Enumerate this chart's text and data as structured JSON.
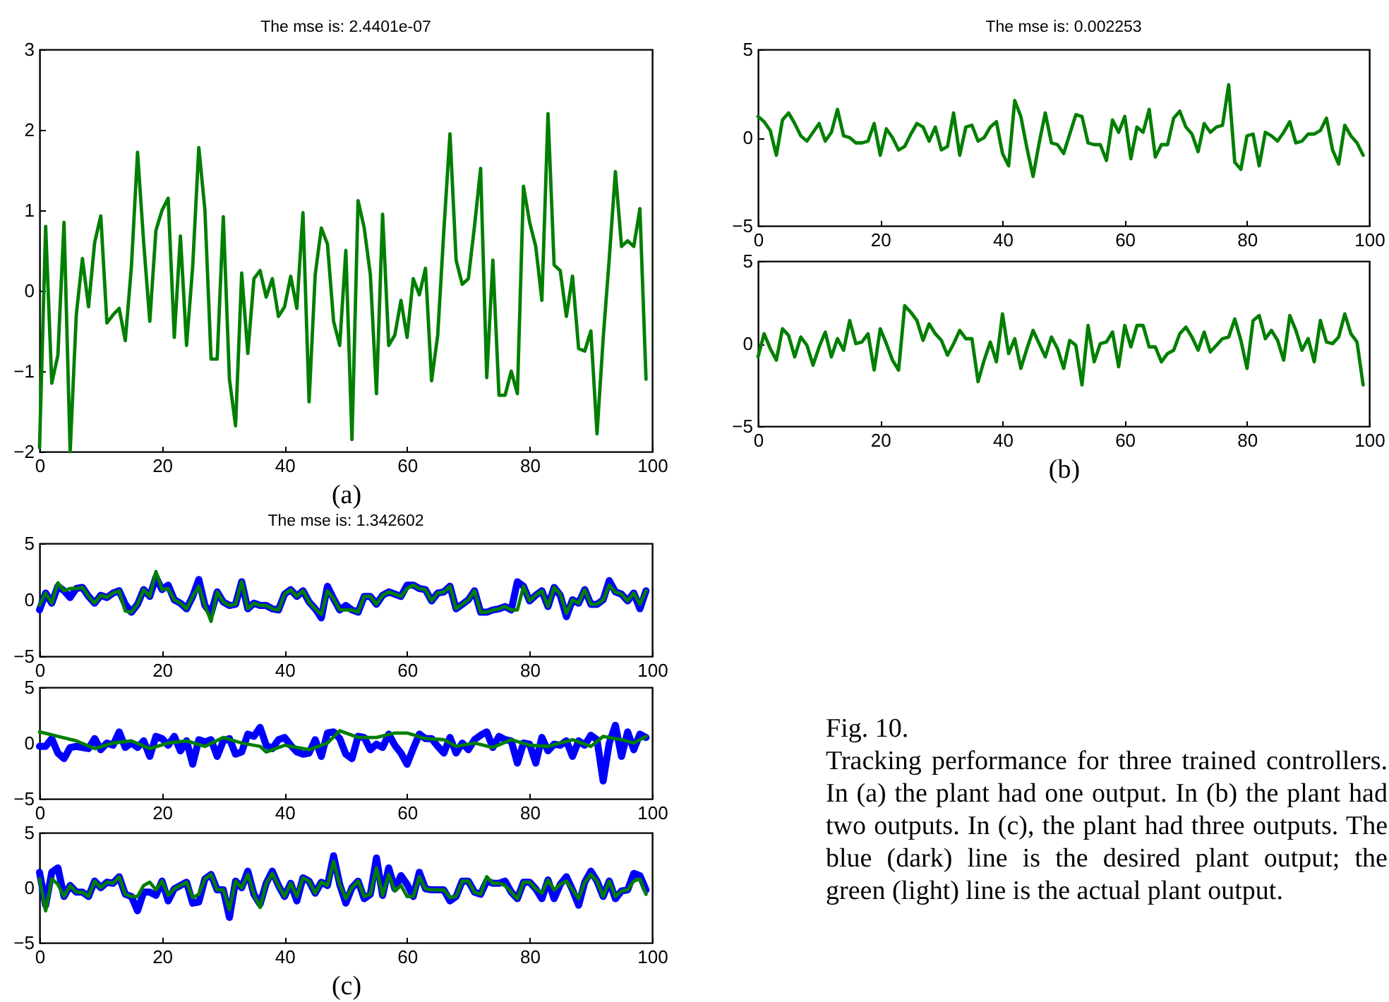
{
  "chart_data": [
    {
      "type": "line",
      "title": "The mse is: 2.4401e-07",
      "xlabel": "(a)",
      "xlim": [
        0,
        100
      ],
      "ylim": [
        -2,
        3
      ],
      "xticks": [
        0,
        20,
        40,
        60,
        80,
        100
      ],
      "yticks": [
        -2,
        -1,
        0,
        1,
        2,
        3
      ],
      "x": [
        0,
        1,
        2,
        3,
        4,
        5,
        6,
        7,
        8,
        9,
        10,
        11,
        12,
        13,
        14,
        15,
        16,
        17,
        18,
        19,
        20,
        21,
        22,
        23,
        24,
        25,
        26,
        27,
        28,
        29,
        30,
        31,
        32,
        33,
        34,
        35,
        36,
        37,
        38,
        39,
        40,
        41,
        42,
        43,
        44,
        45,
        46,
        47,
        48,
        49,
        50,
        51,
        52,
        53,
        54,
        55,
        56,
        57,
        58,
        59,
        60,
        61,
        62,
        63,
        64,
        65,
        66,
        67,
        68,
        69,
        70,
        71,
        72,
        73,
        74,
        75,
        76,
        77,
        78,
        79,
        80,
        81,
        82,
        83,
        84,
        85,
        86,
        87,
        88,
        89,
        90,
        91,
        92,
        93,
        94,
        95,
        96,
        97,
        98,
        99
      ],
      "series": [
        {
          "color": "#007f00",
          "values": [
            -1.95,
            0.8,
            -1.15,
            -0.8,
            0.85,
            -2.0,
            -0.3,
            0.4,
            -0.2,
            0.6,
            0.93,
            -0.4,
            -0.3,
            -0.22,
            -0.62,
            0.3,
            1.72,
            0.6,
            -0.38,
            0.75,
            1.0,
            1.15,
            -0.58,
            0.68,
            -0.68,
            0.3,
            1.78,
            1.0,
            -0.85,
            -0.85,
            0.92,
            -1.1,
            -1.68,
            0.22,
            -0.78,
            0.15,
            0.25,
            -0.08,
            0.15,
            -0.32,
            -0.2,
            0.18,
            -0.22,
            0.97,
            -1.38,
            0.2,
            0.78,
            0.58,
            -0.38,
            -0.68,
            0.5,
            -1.85,
            1.12,
            0.78,
            0.2,
            -1.28,
            0.95,
            -0.68,
            -0.55,
            -0.12,
            -0.58,
            0.15,
            -0.05,
            0.28,
            -1.12,
            -0.55,
            0.75,
            1.95,
            0.38,
            0.08,
            0.15,
            0.8,
            1.52,
            -1.08,
            0.38,
            -1.3,
            -1.3,
            -1.0,
            -1.28,
            1.3,
            0.85,
            0.55,
            -0.12,
            2.2,
            0.32,
            0.25,
            -0.32,
            0.18,
            -0.72,
            -0.75,
            -0.5,
            -1.78,
            -0.6,
            0.4,
            1.48,
            0.55,
            0.62,
            0.55,
            1.02,
            -1.1
          ]
        }
      ]
    },
    {
      "type": "line",
      "title": "The mse is: 0.002253",
      "xlim": [
        0,
        100
      ],
      "ylim": [
        -5,
        5
      ],
      "xticks": [
        0,
        20,
        40,
        60,
        80,
        100
      ],
      "yticks": [
        -5,
        0,
        5
      ],
      "x": [
        0,
        1,
        2,
        3,
        4,
        5,
        6,
        7,
        8,
        9,
        10,
        11,
        12,
        13,
        14,
        15,
        16,
        17,
        18,
        19,
        20,
        21,
        22,
        23,
        24,
        25,
        26,
        27,
        28,
        29,
        30,
        31,
        32,
        33,
        34,
        35,
        36,
        37,
        38,
        39,
        40,
        41,
        42,
        43,
        44,
        45,
        46,
        47,
        48,
        49,
        50,
        51,
        52,
        53,
        54,
        55,
        56,
        57,
        58,
        59,
        60,
        61,
        62,
        63,
        64,
        65,
        66,
        67,
        68,
        69,
        70,
        71,
        72,
        73,
        74,
        75,
        76,
        77,
        78,
        79,
        80,
        81,
        82,
        83,
        84,
        85,
        86,
        87,
        88,
        89,
        90,
        91,
        92,
        93,
        94,
        95,
        96,
        97,
        98,
        99
      ],
      "series": [
        {
          "color": "#007f00",
          "values": [
            1.2,
            0.9,
            0.4,
            -1.0,
            1.0,
            1.4,
            0.8,
            0.1,
            -0.2,
            0.3,
            0.8,
            -0.2,
            0.3,
            1.6,
            0.1,
            0.0,
            -0.3,
            -0.3,
            -0.2,
            0.8,
            -1.0,
            0.5,
            0.0,
            -0.7,
            -0.5,
            0.2,
            0.8,
            0.6,
            -0.2,
            0.6,
            -0.7,
            -0.5,
            1.4,
            -1.0,
            0.6,
            0.7,
            -0.2,
            0.0,
            0.6,
            0.9,
            -0.9,
            -1.6,
            2.1,
            1.2,
            -0.6,
            -2.2,
            -0.3,
            1.4,
            -0.3,
            -0.4,
            -0.9,
            0.2,
            1.3,
            1.2,
            -0.3,
            -0.4,
            -0.4,
            -1.3,
            1.0,
            0.3,
            1.2,
            -1.2,
            0.6,
            0.3,
            1.6,
            -1.1,
            -0.4,
            -0.4,
            1.1,
            1.5,
            0.6,
            0.2,
            -0.8,
            0.8,
            0.3,
            0.6,
            0.7,
            3.0,
            -1.4,
            -1.8,
            0.1,
            0.2,
            -1.6,
            0.3,
            0.1,
            -0.2,
            0.3,
            0.9,
            -0.3,
            -0.2,
            0.2,
            0.2,
            0.4,
            1.1,
            -0.7,
            -1.5,
            0.7,
            0.1,
            -0.3,
            -1.0
          ]
        }
      ]
    },
    {
      "type": "line",
      "xlabel": "(b)",
      "xlim": [
        0,
        100
      ],
      "ylim": [
        -5,
        5
      ],
      "xticks": [
        0,
        20,
        40,
        60,
        80,
        100
      ],
      "yticks": [
        -5,
        0,
        5
      ],
      "x": [
        0,
        1,
        2,
        3,
        4,
        5,
        6,
        7,
        8,
        9,
        10,
        11,
        12,
        13,
        14,
        15,
        16,
        17,
        18,
        19,
        20,
        21,
        22,
        23,
        24,
        25,
        26,
        27,
        28,
        29,
        30,
        31,
        32,
        33,
        34,
        35,
        36,
        37,
        38,
        39,
        40,
        41,
        42,
        43,
        44,
        45,
        46,
        47,
        48,
        49,
        50,
        51,
        52,
        53,
        54,
        55,
        56,
        57,
        58,
        59,
        60,
        61,
        62,
        63,
        64,
        65,
        66,
        67,
        68,
        69,
        70,
        71,
        72,
        73,
        74,
        75,
        76,
        77,
        78,
        79,
        80,
        81,
        82,
        83,
        84,
        85,
        86,
        87,
        88,
        89,
        90,
        91,
        92,
        93,
        94,
        95,
        96,
        97,
        98,
        99
      ],
      "series": [
        {
          "color": "#007f00",
          "values": [
            -0.8,
            0.6,
            -0.3,
            -1.0,
            0.9,
            0.5,
            -0.8,
            0.4,
            -0.1,
            -1.3,
            -0.2,
            0.7,
            -0.8,
            0.3,
            -0.4,
            1.4,
            0.0,
            0.1,
            0.6,
            -1.6,
            0.9,
            0.0,
            -1.0,
            -1.6,
            2.3,
            1.9,
            1.4,
            0.2,
            1.2,
            0.6,
            0.2,
            -0.7,
            0.0,
            0.8,
            0.3,
            0.3,
            -2.3,
            -1.0,
            0.1,
            -1.1,
            1.8,
            -0.6,
            0.3,
            -1.5,
            -0.3,
            0.8,
            0.0,
            -0.8,
            0.4,
            -0.3,
            -1.5,
            0.2,
            -0.1,
            -2.5,
            1.1,
            -1.1,
            0.0,
            0.1,
            0.7,
            -1.4,
            1.1,
            -0.2,
            1.1,
            1.1,
            -0.2,
            -0.2,
            -1.1,
            -0.6,
            -0.4,
            0.6,
            1.0,
            0.4,
            -0.4,
            0.7,
            -0.5,
            -0.1,
            0.3,
            0.4,
            1.5,
            0.2,
            -1.5,
            1.4,
            1.7,
            0.3,
            0.8,
            0.2,
            -1.0,
            1.7,
            0.8,
            -0.4,
            0.3,
            -1.1,
            1.4,
            0.1,
            0.0,
            0.4,
            1.8,
            0.6,
            0.1,
            -2.5
          ]
        }
      ]
    },
    {
      "type": "line",
      "title": "The mse is: 1.342602",
      "xlim": [
        0,
        100
      ],
      "ylim": [
        -5,
        5
      ],
      "xticks": [
        0,
        20,
        40,
        60,
        80,
        100
      ],
      "yticks": [
        -5,
        0,
        5
      ],
      "x": [
        0,
        1,
        2,
        3,
        4,
        5,
        6,
        7,
        8,
        9,
        10,
        11,
        12,
        13,
        14,
        15,
        16,
        17,
        18,
        19,
        20,
        21,
        22,
        23,
        24,
        25,
        26,
        27,
        28,
        29,
        30,
        31,
        32,
        33,
        34,
        35,
        36,
        37,
        38,
        39,
        40,
        41,
        42,
        43,
        44,
        45,
        46,
        47,
        48,
        49,
        50,
        51,
        52,
        53,
        54,
        55,
        56,
        57,
        58,
        59,
        60,
        61,
        62,
        63,
        64,
        65,
        66,
        67,
        68,
        69,
        70,
        71,
        72,
        73,
        74,
        75,
        76,
        77,
        78,
        79,
        80,
        81,
        82,
        83,
        84,
        85,
        86,
        87,
        88,
        89,
        90,
        91,
        92,
        93,
        94,
        95,
        96,
        97,
        98,
        99
      ],
      "series": [
        {
          "color": "#0000ff",
          "values": [
            -0.9,
            0.6,
            -0.3,
            1.2,
            0.8,
            0.2,
            1.0,
            1.1,
            0.3,
            -0.3,
            0.4,
            0.2,
            0.6,
            0.8,
            -0.4,
            -1.1,
            -0.4,
            0.9,
            0.3,
            2.0,
            0.9,
            1.3,
            0.0,
            -0.3,
            -0.8,
            0.3,
            1.8,
            -0.5,
            -1.2,
            0.7,
            -0.2,
            -0.5,
            -0.4,
            1.6,
            -0.8,
            -0.3,
            -0.5,
            -0.5,
            -0.8,
            -0.9,
            0.5,
            0.9,
            0.3,
            0.8,
            -0.2,
            -0.8,
            -1.6,
            1.2,
            0.1,
            -0.9,
            -0.5,
            -0.9,
            -1.1,
            0.3,
            0.3,
            -0.4,
            0.4,
            0.7,
            0.5,
            0.3,
            1.3,
            1.3,
            1.0,
            0.9,
            -0.1,
            0.6,
            0.7,
            1.2,
            -0.8,
            -0.4,
            0.0,
            0.8,
            -1.1,
            -1.1,
            -0.9,
            -0.8,
            -0.6,
            -0.9,
            1.6,
            1.2,
            -0.1,
            0.4,
            0.8,
            -0.6,
            1.1,
            0.4,
            -1.5,
            0.0,
            -0.3,
            0.9,
            -0.4,
            -0.4,
            0.0,
            1.7,
            0.7,
            0.5,
            -0.1,
            0.6,
            -0.8,
            0.8
          ]
        },
        {
          "color": "#007f00",
          "values": [
            -0.5,
            0.6,
            -0.3,
            1.5,
            0.8,
            1.0,
            1.0,
            1.1,
            0.3,
            -0.3,
            0.4,
            0.2,
            0.6,
            0.8,
            -1.0,
            -1.1,
            -0.4,
            0.9,
            0.3,
            2.5,
            0.9,
            1.0,
            0.0,
            -0.3,
            -0.8,
            0.3,
            1.2,
            -0.5,
            -1.9,
            0.7,
            -0.2,
            -0.5,
            -0.4,
            1.6,
            -0.8,
            -0.3,
            -0.5,
            -0.5,
            -0.8,
            -0.9,
            0.5,
            0.9,
            0.3,
            0.8,
            -0.2,
            -0.8,
            -1.3,
            0.8,
            0.1,
            -0.9,
            -0.9,
            -0.9,
            -1.1,
            0.3,
            0.3,
            -0.4,
            0.4,
            0.7,
            0.5,
            0.3,
            1.0,
            1.3,
            1.0,
            0.9,
            -0.1,
            0.6,
            0.7,
            1.2,
            -0.8,
            -0.4,
            0.0,
            0.8,
            -1.1,
            -1.1,
            -0.9,
            -0.8,
            -0.6,
            -0.9,
            -0.9,
            1.2,
            -0.1,
            0.4,
            0.8,
            -0.6,
            1.1,
            0.5,
            -1.2,
            0.0,
            -0.3,
            0.9,
            -0.4,
            -0.4,
            0.0,
            1.3,
            0.7,
            0.5,
            -0.1,
            0.6,
            -0.4,
            0.8
          ]
        }
      ]
    },
    {
      "type": "line",
      "xlim": [
        0,
        100
      ],
      "ylim": [
        -5,
        5
      ],
      "xticks": [
        0,
        20,
        40,
        60,
        80,
        100
      ],
      "yticks": [
        -5,
        0,
        5
      ],
      "x": [
        0,
        1,
        2,
        3,
        4,
        5,
        6,
        7,
        8,
        9,
        10,
        11,
        12,
        13,
        14,
        15,
        16,
        17,
        18,
        19,
        20,
        21,
        22,
        23,
        24,
        25,
        26,
        27,
        28,
        29,
        30,
        31,
        32,
        33,
        34,
        35,
        36,
        37,
        38,
        39,
        40,
        41,
        42,
        43,
        44,
        45,
        46,
        47,
        48,
        49,
        50,
        51,
        52,
        53,
        54,
        55,
        56,
        57,
        58,
        59,
        60,
        61,
        62,
        63,
        64,
        65,
        66,
        67,
        68,
        69,
        70,
        71,
        72,
        73,
        74,
        75,
        76,
        77,
        78,
        79,
        80,
        81,
        82,
        83,
        84,
        85,
        86,
        87,
        88,
        89,
        90,
        91,
        92,
        93,
        94,
        95,
        96,
        97,
        98,
        99
      ],
      "series": [
        {
          "color": "#0000ff",
          "values": [
            -0.3,
            -0.3,
            0.4,
            -0.9,
            -1.4,
            -0.4,
            -0.3,
            -0.4,
            -0.5,
            0.4,
            -0.6,
            0.0,
            -0.2,
            1.0,
            -0.4,
            0.0,
            -0.4,
            0.2,
            -1.2,
            0.6,
            0.4,
            -0.2,
            0.6,
            -0.7,
            0.2,
            -1.9,
            0.3,
            0.1,
            0.3,
            -1.2,
            0.2,
            0.4,
            -1.0,
            -0.8,
            0.8,
            0.6,
            1.4,
            -0.2,
            -0.5,
            0.3,
            0.5,
            -0.2,
            -0.8,
            -1.0,
            -0.9,
            0.3,
            -1.2,
            0.9,
            1.0,
            0.4,
            -1.0,
            -1.4,
            0.6,
            0.5,
            -0.6,
            -0.1,
            -0.4,
            0.8,
            -0.2,
            -0.9,
            -1.9,
            -0.5,
            0.8,
            0.4,
            0.4,
            -0.3,
            -0.9,
            0.5,
            -0.9,
            0.0,
            -0.6,
            0.3,
            0.7,
            1.0,
            -0.4,
            0.6,
            0.3,
            0.2,
            -1.8,
            0.0,
            -0.1,
            -1.8,
            0.5,
            -0.7,
            -0.1,
            -0.2,
            0.2,
            -1.2,
            0.2,
            -0.2,
            0.7,
            0.3,
            -3.4,
            0.0,
            1.6,
            -1.2,
            1.0,
            -0.6,
            0.8,
            0.5
          ]
        },
        {
          "color": "#007f00",
          "x": [
            0,
            3,
            6,
            9,
            12,
            15,
            18,
            21,
            24,
            27,
            30,
            33,
            36,
            37,
            40,
            44,
            47,
            49,
            52,
            55,
            58,
            60,
            63,
            66,
            68,
            71,
            74,
            77,
            80,
            83,
            87,
            90,
            92,
            95,
            97,
            99
          ],
          "values": [
            1.0,
            0.6,
            0.2,
            -0.5,
            0.0,
            0.2,
            -0.5,
            0.0,
            0.2,
            -0.3,
            0.5,
            0.0,
            -0.3,
            -0.8,
            -0.2,
            -0.6,
            0.0,
            1.1,
            0.5,
            0.5,
            0.9,
            0.9,
            0.4,
            0.3,
            -0.3,
            0.0,
            -0.4,
            0.3,
            -0.2,
            -0.3,
            0.3,
            -0.3,
            0.6,
            0.3,
            0.0,
            0.6
          ]
        }
      ]
    },
    {
      "type": "line",
      "xlabel": "(c)",
      "xlim": [
        0,
        100
      ],
      "ylim": [
        -5,
        5
      ],
      "xticks": [
        0,
        20,
        40,
        60,
        80,
        100
      ],
      "yticks": [
        -5,
        0,
        5
      ],
      "x": [
        0,
        1,
        2,
        3,
        4,
        5,
        6,
        7,
        8,
        9,
        10,
        11,
        12,
        13,
        14,
        15,
        16,
        17,
        18,
        19,
        20,
        21,
        22,
        23,
        24,
        25,
        26,
        27,
        28,
        29,
        30,
        31,
        32,
        33,
        34,
        35,
        36,
        37,
        38,
        39,
        40,
        41,
        42,
        43,
        44,
        45,
        46,
        47,
        48,
        49,
        50,
        51,
        52,
        53,
        54,
        55,
        56,
        57,
        58,
        59,
        60,
        61,
        62,
        63,
        64,
        65,
        66,
        67,
        68,
        69,
        70,
        71,
        72,
        73,
        74,
        75,
        76,
        77,
        78,
        79,
        80,
        81,
        82,
        83,
        84,
        85,
        86,
        87,
        88,
        89,
        90,
        91,
        92,
        93,
        94,
        95,
        96,
        97,
        98,
        99
      ],
      "series": [
        {
          "color": "#0000ff",
          "values": [
            1.4,
            -1.6,
            1.4,
            1.8,
            -0.8,
            0.2,
            -0.4,
            -0.4,
            -0.8,
            0.6,
            0.0,
            0.5,
            0.4,
            1.0,
            -0.6,
            -0.8,
            -2.1,
            -0.4,
            -0.4,
            -0.7,
            0.6,
            -1.2,
            -0.1,
            0.2,
            0.5,
            -1.4,
            -1.3,
            0.8,
            1.2,
            -0.2,
            -0.2,
            -2.7,
            0.6,
            0.0,
            1.5,
            -0.6,
            -1.5,
            0.4,
            1.5,
            0.2,
            -0.8,
            0.4,
            -1.2,
            0.9,
            0.6,
            -0.5,
            0.5,
            0.2,
            2.9,
            0.3,
            -1.4,
            0.0,
            0.6,
            -1.0,
            -0.6,
            2.7,
            -0.7,
            1.8,
            -0.1,
            1.1,
            0.3,
            -0.8,
            1.4,
            -0.1,
            -0.2,
            -0.2,
            -0.2,
            -1.2,
            -0.8,
            0.6,
            0.6,
            -0.4,
            -0.6,
            0.6,
            0.4,
            0.4,
            0.6,
            -0.4,
            -1.0,
            0.5,
            0.5,
            -0.1,
            -1.0,
            0.7,
            -1.0,
            0.3,
            1.0,
            -0.2,
            -1.6,
            0.5,
            1.5,
            0.6,
            -0.8,
            0.6,
            -1.0,
            -0.3,
            -0.2,
            1.3,
            1.1,
            -0.2
          ]
        },
        {
          "color": "#007f00",
          "values": [
            0.8,
            -2.1,
            0.8,
            0.3,
            -0.8,
            0.2,
            -0.4,
            -0.4,
            -0.8,
            0.6,
            0.0,
            0.5,
            0.4,
            1.0,
            -0.6,
            -0.8,
            -0.8,
            0.2,
            0.5,
            -0.2,
            0.6,
            -0.7,
            -0.1,
            0.2,
            0.5,
            -0.9,
            -0.6,
            0.8,
            1.2,
            -0.2,
            -0.2,
            -2.0,
            0.6,
            0.0,
            1.2,
            -0.6,
            -1.8,
            0.4,
            1.3,
            0.2,
            -0.8,
            0.4,
            -0.8,
            0.9,
            0.6,
            -0.5,
            0.5,
            0.2,
            2.4,
            0.3,
            -1.0,
            0.0,
            0.6,
            -0.8,
            -0.6,
            1.8,
            -0.7,
            1.2,
            -0.3,
            0.2,
            -0.8,
            -0.8,
            1.0,
            -0.1,
            -0.2,
            -0.2,
            -0.2,
            -0.9,
            -0.8,
            0.6,
            0.6,
            -0.4,
            -0.6,
            1.0,
            0.4,
            0.4,
            0.2,
            -0.4,
            -1.0,
            0.5,
            0.5,
            -0.1,
            -0.5,
            0.7,
            -0.2,
            0.3,
            0.6,
            -0.2,
            -1.0,
            0.5,
            1.2,
            0.6,
            -0.8,
            0.6,
            -0.8,
            -0.3,
            -0.2,
            0.6,
            0.8,
            -0.6
          ]
        }
      ]
    },
    {
      "type": "other",
      "title": "Fig. 10.",
      "annotations": [
        "Tracking performance for three trained controllers. In (a) the plant had one output. In (b) the plant had two outputs. In (c), the plant had three outputs. The blue (dark) line is the desired plant output; the green (light) line is the actual plant output."
      ]
    }
  ]
}
